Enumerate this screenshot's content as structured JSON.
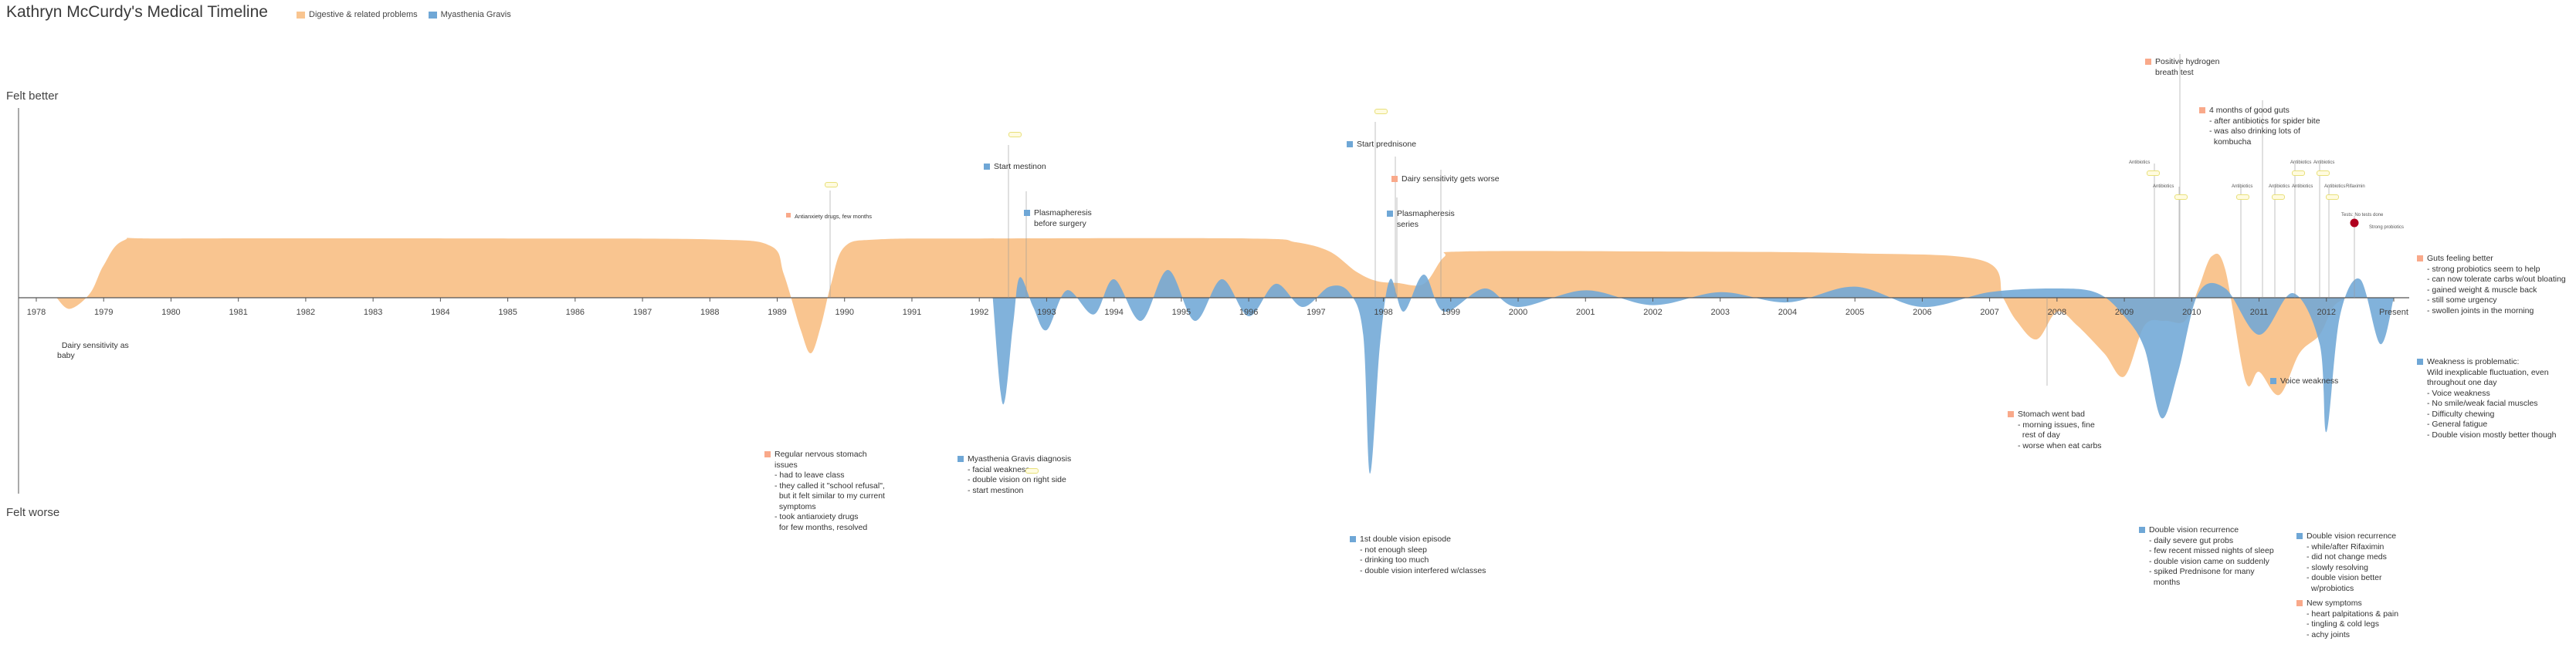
{
  "title": "Kathryn McCurdy's Medical Timeline",
  "legend": [
    {
      "label": "Digestive & related problems",
      "color": "#f9c590"
    },
    {
      "label": "Myasthenia Gravis",
      "color": "#6fa7d6"
    }
  ],
  "axis": {
    "top_label": "Felt better",
    "bottom_label": "Felt worse",
    "years": [
      "1978",
      "1979",
      "1980",
      "1981",
      "1982",
      "1983",
      "1984",
      "1985",
      "1986",
      "1987",
      "1988",
      "1989",
      "1990",
      "1991",
      "1992",
      "1993",
      "1994",
      "1995",
      "1996",
      "1997",
      "1998",
      "1999",
      "2000",
      "2001",
      "2002",
      "2003",
      "2004",
      "2005",
      "2006",
      "2007",
      "2008",
      "2009",
      "2010",
      "2011",
      "2012",
      "Present"
    ]
  },
  "colors": {
    "digestive": "#f9c590",
    "mg": "#6fa7d6",
    "marker_red": "#b0001f"
  },
  "chart_data": {
    "type": "area",
    "title": "Kathryn McCurdy's Medical Timeline",
    "ylabel_top": "Felt better",
    "ylabel_bottom": "Felt worse",
    "series": [
      {
        "name": "Digestive & related problems",
        "points": [
          [
            1978.3,
            0
          ],
          [
            1978.5,
            -0.12
          ],
          [
            1978.8,
            0.05
          ],
          [
            1979.0,
            0.35
          ],
          [
            1979.3,
            0.62
          ],
          [
            1980,
            0.64
          ],
          [
            1985,
            0.64
          ],
          [
            1988,
            0.63
          ],
          [
            1988.9,
            0.56
          ],
          [
            1989.1,
            0.25
          ],
          [
            1989.35,
            -0.35
          ],
          [
            1989.5,
            -0.6
          ],
          [
            1989.65,
            -0.3
          ],
          [
            1989.8,
            0.15
          ],
          [
            1990.0,
            0.55
          ],
          [
            1990.5,
            0.63
          ],
          [
            1992,
            0.64
          ],
          [
            1996,
            0.64
          ],
          [
            1996.7,
            0.6
          ],
          [
            1997.2,
            0.5
          ],
          [
            1997.6,
            0.28
          ],
          [
            1997.9,
            0.18
          ],
          [
            1998.2,
            0.16
          ],
          [
            1998.6,
            0.15
          ],
          [
            1998.9,
            0.44
          ],
          [
            1999.2,
            0.5
          ],
          [
            2002,
            0.5
          ],
          [
            2005,
            0.48
          ],
          [
            2006.9,
            0.4
          ],
          [
            2007.2,
            0
          ],
          [
            2007.4,
            -0.25
          ],
          [
            2007.7,
            -0.45
          ],
          [
            2008.0,
            -0.15
          ],
          [
            2008.3,
            -0.3
          ],
          [
            2008.7,
            -0.6
          ],
          [
            2009.0,
            -0.85
          ],
          [
            2009.3,
            -0.3
          ],
          [
            2009.6,
            -0.25
          ],
          [
            2009.9,
            -0.25
          ],
          [
            2010.1,
            0.1
          ],
          [
            2010.3,
            0.45
          ],
          [
            2010.5,
            0.3
          ],
          [
            2010.8,
            -0.9
          ],
          [
            2011.0,
            -0.8
          ],
          [
            2011.3,
            -1.05
          ],
          [
            2011.6,
            -0.6
          ],
          [
            2011.9,
            -0.4
          ],
          [
            2012.1,
            -0.1
          ],
          [
            2012.3,
            0
          ]
        ]
      },
      {
        "name": "Myasthenia Gravis",
        "points": [
          [
            1992.2,
            0
          ],
          [
            1992.35,
            -1.15
          ],
          [
            1992.5,
            -0.3
          ],
          [
            1992.6,
            0.22
          ],
          [
            1992.8,
            -0.1
          ],
          [
            1993.0,
            -0.35
          ],
          [
            1993.3,
            0.08
          ],
          [
            1993.7,
            -0.18
          ],
          [
            1994.0,
            0.2
          ],
          [
            1994.4,
            -0.25
          ],
          [
            1994.8,
            0.3
          ],
          [
            1995.2,
            -0.25
          ],
          [
            1995.6,
            0.2
          ],
          [
            1996.0,
            -0.2
          ],
          [
            1996.4,
            0.15
          ],
          [
            1996.8,
            -0.1
          ],
          [
            1997.2,
            0.12
          ],
          [
            1997.5,
            0.05
          ],
          [
            1997.7,
            -0.4
          ],
          [
            1997.8,
            -1.9
          ],
          [
            1997.95,
            -0.5
          ],
          [
            1998.1,
            0.2
          ],
          [
            1998.3,
            -0.15
          ],
          [
            1998.6,
            0.25
          ],
          [
            1998.9,
            -0.15
          ],
          [
            1999.5,
            0.1
          ],
          [
            2000,
            -0.1
          ],
          [
            2001,
            0.08
          ],
          [
            2002,
            -0.08
          ],
          [
            2003,
            0.06
          ],
          [
            2004,
            -0.05
          ],
          [
            2005,
            0.12
          ],
          [
            2006,
            -0.1
          ],
          [
            2007,
            0.06
          ],
          [
            2008,
            0.1
          ],
          [
            2008.6,
            0.05
          ],
          [
            2009.0,
            -0.2
          ],
          [
            2009.3,
            -0.55
          ],
          [
            2009.55,
            -1.3
          ],
          [
            2009.8,
            -0.8
          ],
          [
            2010.1,
            0.05
          ],
          [
            2010.5,
            0.1
          ],
          [
            2011.0,
            -0.4
          ],
          [
            2011.5,
            0.05
          ],
          [
            2011.9,
            -0.5
          ],
          [
            2012.0,
            -1.45
          ],
          [
            2012.2,
            -0.2
          ],
          [
            2012.5,
            0.2
          ],
          [
            2012.8,
            -0.5
          ],
          [
            2013.0,
            0
          ]
        ]
      }
    ],
    "events": [
      {
        "year": 1978.5,
        "series": "none",
        "text": "Dairy sensitivity as\nbaby"
      },
      {
        "year": 1989.5,
        "series": "Digestive & related problems",
        "text": "Regular nervous stomach\nissues\n- had to leave class\n- they called it \"school refusal\",\n  but it felt similar to my current\n  symptoms\n- took antianxiety drugs\n  for few months, resolved"
      },
      {
        "year": 1989.5,
        "series": "Digestive & related problems",
        "text": "Antianxiety drugs, few months"
      },
      {
        "year": 1992.4,
        "series": "Myasthenia Gravis",
        "text": "Start mestinon"
      },
      {
        "year": 1992.6,
        "series": "Myasthenia Gravis",
        "text": "Plasmapheresis\nbefore surgery"
      },
      {
        "year": 1992.4,
        "series": "Myasthenia Gravis",
        "text": "Myasthenia Gravis diagnosis\n- facial weakness\n- double vision on right side\n- start mestinon"
      },
      {
        "year": 1997.6,
        "series": "Myasthenia Gravis",
        "text": "Start prednisone"
      },
      {
        "year": 1997.8,
        "series": "Digestive & related problems",
        "text": "Dairy sensitivity gets worse"
      },
      {
        "year": 1997.8,
        "series": "Myasthenia Gravis",
        "text": "Plasmapheresis\nseries"
      },
      {
        "year": 1997.8,
        "series": "Myasthenia Gravis",
        "text": "1st double vision episode\n- not enough sleep\n- drinking too much\n- double vision interfered w/classes"
      },
      {
        "year": 2007.5,
        "series": "Digestive & related problems",
        "text": "Stomach went bad\n- morning issues, fine\n  rest of day\n- worse when eat carbs"
      },
      {
        "year": 2009.4,
        "series": "Digestive & related problems",
        "text": "Positive hydrogen\nbreath test"
      },
      {
        "year": 2010.2,
        "series": "Digestive & related problems",
        "text": "4 months of good guts\n- after antibiotics for spider bite\n- was also drinking lots of\n  kombucha"
      },
      {
        "year": 2009.4,
        "series": "Myasthenia Gravis",
        "text": "Double vision recurrence\n- daily severe gut probs\n- few recent missed nights of sleep\n- double vision came on suddenly\n- spiked Prednisone for many\n  months"
      },
      {
        "year": 2011.0,
        "series": "Myasthenia Gravis",
        "text": "Voice weakness"
      },
      {
        "year": 2011.4,
        "series": "Myasthenia Gravis",
        "text": "Double vision recurrence\n- while/after Rifaximin\n- did not change meds\n- slowly resolving\n- double vision better\n  w/probiotics"
      },
      {
        "year": 2011.4,
        "series": "Digestive & related problems",
        "text": "New symptoms\n- heart palpitations & pain\n- tingling & cold legs\n- achy joints"
      },
      {
        "year": 2012.5,
        "series": "Digestive & related problems",
        "text": "Guts feeling better\n- strong probiotics seem to help\n- can now tolerate carbs w/out bloating\n- gained weight & muscle back\n- still some urgency\n- swollen joints in the morning"
      },
      {
        "year": 2012.5,
        "series": "Myasthenia Gravis",
        "text": "Weakness is problematic:\nWild inexplicable fluctuation, even\nthroughout one day\n- Voice weakness\n- No smile/weak facial muscles\n- Difficulty chewing\n- General fatigue\n- Double vision mostly better though"
      }
    ],
    "small_labels": [
      "Antibiotics",
      "Antibiotics",
      "Antibiotics",
      "Antibiotics",
      "Antibiotics",
      "Antibiotics",
      "Antibiotics",
      "Antibiotics",
      "Rifaximin",
      "Tests: No tests done",
      "Strong probiotics"
    ]
  }
}
